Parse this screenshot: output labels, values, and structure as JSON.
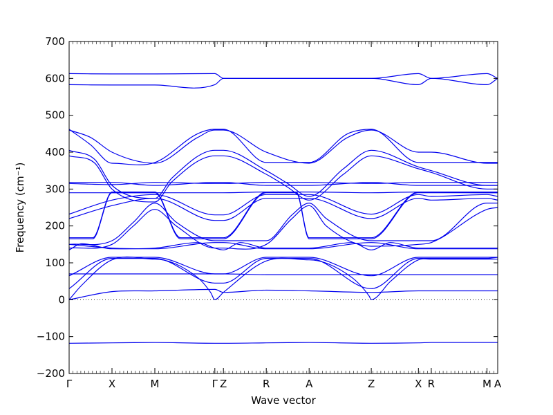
{
  "chart_data": {
    "type": "line",
    "title": "",
    "xlabel": "Wave vector",
    "ylabel": "Frequency (cm⁻¹)",
    "ylim": [
      -200,
      700
    ],
    "yticks": [
      -200,
      -100,
      0,
      100,
      200,
      300,
      400,
      500,
      600,
      700
    ],
    "ytick_labels": [
      "−200",
      "−100",
      "0",
      "100",
      "200",
      "300",
      "400",
      "500",
      "600",
      "700"
    ],
    "xlim": [
      0,
      10
    ],
    "high_symmetry_points": [
      {
        "label": "Γ",
        "x": 0
      },
      {
        "label": "X",
        "x": 1
      },
      {
        "label": "M",
        "x": 2
      },
      {
        "label": "Γ",
        "x": 3.4
      },
      {
        "label": "Z",
        "x": 3.6
      },
      {
        "label": "R",
        "x": 4.6
      },
      {
        "label": "A",
        "x": 5.6
      },
      {
        "label": "Z",
        "x": 7.05
      },
      {
        "label": "X",
        "x": 8.15
      },
      {
        "label": "R",
        "x": 8.45
      },
      {
        "label": "M",
        "x": 9.75
      },
      {
        "label": "A",
        "x": 10
      }
    ],
    "band_color": "#0000ee",
    "series": [
      {
        "x": [
          0,
          1,
          2,
          3.4,
          3.6,
          4.6,
          5.6,
          7.05,
          8.15,
          8.45,
          9.75,
          10
        ],
        "y": [
          -118,
          -117,
          -116,
          -118,
          -118,
          -117,
          -116,
          -118,
          -117,
          -116,
          -116,
          -116
        ]
      },
      {
        "x": [
          0,
          1,
          2,
          3.4,
          3.6,
          4.6,
          5.6,
          7.05,
          8.15,
          8.45,
          9.75,
          10
        ],
        "y": [
          0,
          22,
          24,
          28,
          20,
          26,
          24,
          20,
          24,
          24,
          24,
          24
        ]
      },
      {
        "x": [
          0,
          0.3,
          1,
          2,
          3.0,
          3.3,
          3.4,
          3.6,
          4.6,
          5.6,
          6.6,
          7.0,
          7.05,
          7.5,
          8.15,
          8.45,
          9.75,
          10
        ],
        "y": [
          0,
          40,
          108,
          110,
          60,
          20,
          0,
          20,
          105,
          108,
          60,
          10,
          0,
          50,
          108,
          110,
          110,
          110
        ]
      },
      {
        "x": [
          0,
          1,
          2,
          3.4,
          3.6,
          4.6,
          5.6,
          7.05,
          8.15,
          8.45,
          9.75,
          10
        ],
        "y": [
          30,
          112,
          112,
          45,
          45,
          112,
          112,
          30,
          112,
          112,
          112,
          115
        ]
      },
      {
        "x": [
          0,
          1,
          2,
          3.4,
          3.6,
          4.6,
          5.6,
          7.05,
          8.15,
          8.45,
          9.75,
          10
        ],
        "y": [
          65,
          115,
          115,
          70,
          70,
          115,
          115,
          65,
          115,
          115,
          115,
          115
        ]
      },
      {
        "x": [
          0,
          1,
          2,
          3.4,
          3.6,
          4.6,
          5.6,
          7.05,
          8.15,
          8.45,
          9.75,
          10
        ],
        "y": [
          70,
          70,
          70,
          70,
          70,
          68,
          68,
          68,
          68,
          68,
          68,
          68
        ]
      },
      {
        "x": [
          0,
          0.3,
          1,
          2,
          3.0,
          3.4,
          3.6,
          4.0,
          4.6,
          5.6,
          6.6,
          7.05,
          7.5,
          8.15,
          8.45,
          9.75,
          10
        ],
        "y": [
          135,
          152,
          138,
          140,
          155,
          140,
          135,
          155,
          140,
          140,
          155,
          135,
          155,
          140,
          140,
          140,
          140
        ]
      },
      {
        "x": [
          0,
          1,
          2,
          3.4,
          3.6,
          4.6,
          5.6,
          7.05,
          8.15,
          8.45,
          9.75,
          10
        ],
        "y": [
          150,
          140,
          138,
          155,
          155,
          138,
          138,
          155,
          138,
          138,
          138,
          138
        ]
      },
      {
        "x": [
          0,
          0.55,
          1,
          2,
          2.6,
          3.4,
          3.6,
          4.6,
          5.3,
          5.6,
          6.3,
          7.05,
          8.15,
          8.45,
          9.75,
          10
        ],
        "y": [
          165,
          165,
          290,
          290,
          165,
          165,
          165,
          290,
          290,
          165,
          165,
          165,
          290,
          290,
          290,
          290
        ]
      },
      {
        "x": [
          0,
          0.55,
          1,
          2,
          2.6,
          3.4,
          3.6,
          4.6,
          5.3,
          5.6,
          6.3,
          7.05,
          8.15,
          8.45,
          9.75,
          10
        ],
        "y": [
          168,
          168,
          292,
          292,
          168,
          168,
          168,
          292,
          292,
          168,
          168,
          168,
          292,
          292,
          292,
          292
        ]
      },
      {
        "x": [
          0,
          1,
          1.5,
          2,
          2.5,
          3.4,
          3.6,
          4.6,
          5.2,
          5.6,
          6.0,
          7.05,
          8.15,
          8.45,
          9.75,
          10
        ],
        "y": [
          140,
          150,
          200,
          245,
          200,
          140,
          140,
          150,
          220,
          255,
          200,
          145,
          150,
          155,
          245,
          250
        ]
      },
      {
        "x": [
          0,
          1,
          1.5,
          2,
          2.5,
          3.4,
          3.6,
          4.6,
          5.2,
          5.6,
          6.0,
          7.05,
          8.15,
          8.45,
          9.75,
          10
        ],
        "y": [
          150,
          160,
          210,
          262,
          210,
          160,
          160,
          160,
          230,
          262,
          220,
          160,
          160,
          160,
          262,
          262
        ]
      },
      {
        "x": [
          0,
          1,
          2,
          3.4,
          3.6,
          4.6,
          5.6,
          7.05,
          8.15,
          8.45,
          9.75,
          10
        ],
        "y": [
          220,
          255,
          275,
          215,
          215,
          275,
          275,
          220,
          275,
          270,
          275,
          270
        ]
      },
      {
        "x": [
          0,
          1,
          2,
          3.4,
          3.6,
          4.6,
          5.6,
          7.05,
          8.15,
          8.45,
          9.75,
          10
        ],
        "y": [
          232,
          270,
          285,
          230,
          230,
          285,
          285,
          232,
          285,
          280,
          285,
          280
        ]
      },
      {
        "x": [
          0,
          1,
          2,
          3.4,
          3.6,
          4.6,
          5.6,
          7.05,
          8.15,
          8.45,
          9.75,
          10
        ],
        "y": [
          290,
          290,
          290,
          290,
          290,
          292,
          292,
          290,
          292,
          292,
          290,
          290
        ]
      },
      {
        "x": [
          0,
          1,
          2,
          3.4,
          3.6,
          4.6,
          5.6,
          7.05,
          8.15,
          8.45,
          9.75,
          10
        ],
        "y": [
          315,
          312,
          318,
          315,
          315,
          318,
          318,
          315,
          318,
          318,
          318,
          318
        ]
      },
      {
        "x": [
          0,
          1,
          2,
          3.4,
          3.6,
          4.6,
          5.6,
          7.05,
          8.15,
          8.45,
          9.75,
          10
        ],
        "y": [
          318,
          318,
          310,
          318,
          318,
          310,
          310,
          318,
          310,
          310,
          310,
          310
        ]
      },
      {
        "x": [
          0,
          0.6,
          1,
          2,
          2.4,
          3.4,
          3.6,
          4.6,
          5.1,
          5.6,
          6.4,
          7.05,
          8.15,
          8.45,
          9.75,
          10
        ],
        "y": [
          390,
          370,
          300,
          265,
          320,
          390,
          390,
          340,
          305,
          270,
          340,
          390,
          355,
          345,
          300,
          300
        ]
      },
      {
        "x": [
          0,
          0.6,
          1,
          2,
          2.4,
          3.4,
          3.6,
          4.6,
          5.1,
          5.6,
          6.4,
          7.05,
          8.15,
          8.45,
          9.75,
          10
        ],
        "y": [
          405,
          380,
          310,
          275,
          330,
          405,
          405,
          350,
          315,
          280,
          355,
          405,
          360,
          350,
          310,
          310
        ]
      },
      {
        "x": [
          0,
          0.5,
          1,
          2,
          3.0,
          3.4,
          3.6,
          4.6,
          5.6,
          6.5,
          7.05,
          8.15,
          8.45,
          9.75,
          10
        ],
        "y": [
          460,
          440,
          400,
          370,
          440,
          460,
          460,
          400,
          370,
          440,
          460,
          400,
          400,
          370,
          370
        ]
      },
      {
        "x": [
          0,
          0.5,
          1,
          2,
          3.0,
          3.4,
          3.6,
          4.6,
          5.6,
          6.5,
          7.05,
          8.15,
          8.45,
          9.75,
          10
        ],
        "y": [
          462,
          420,
          370,
          372,
          450,
          462,
          462,
          372,
          372,
          450,
          462,
          372,
          372,
          372,
          372
        ]
      },
      {
        "x": [
          0,
          1,
          2,
          3.4,
          3.6,
          4.6,
          5.6,
          7.05,
          8.15,
          8.45,
          9.75,
          10
        ],
        "y": [
          583,
          582,
          582,
          583,
          600,
          600,
          600,
          600,
          583,
          600,
          583,
          600
        ]
      },
      {
        "x": [
          0,
          1,
          2,
          3.4,
          3.6,
          4.6,
          5.6,
          7.05,
          8.15,
          8.45,
          9.75,
          10
        ],
        "y": [
          613,
          612,
          612,
          613,
          600,
          600,
          600,
          600,
          613,
          600,
          613,
          600
        ]
      }
    ]
  }
}
